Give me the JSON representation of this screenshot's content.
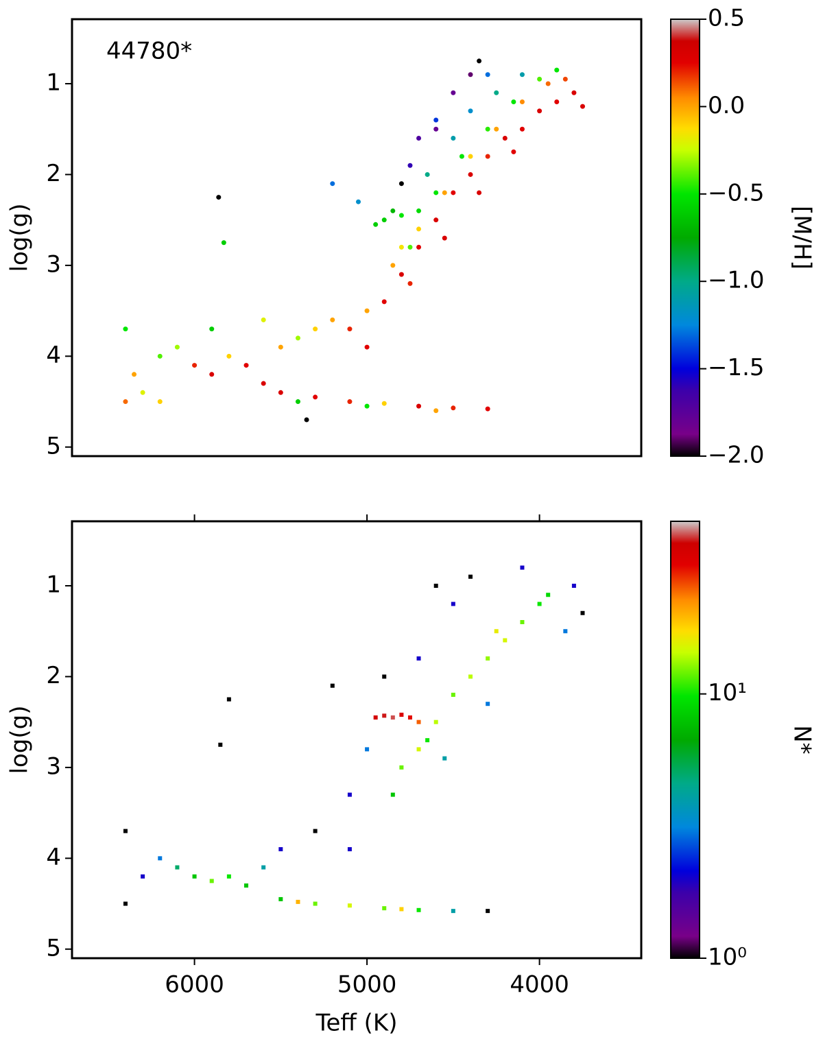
{
  "chart_data": [
    {
      "type": "scatter",
      "annotation": "44780*",
      "ylabel": "log(g)",
      "xlim": [
        6710,
        3410
      ],
      "ylim": [
        0.29,
        5.1
      ],
      "yticks": [
        1,
        2,
        3,
        4,
        5
      ],
      "x": [
        4900,
        4800,
        4700,
        4600,
        4500,
        4400,
        4300,
        4200,
        4100,
        4000,
        3900,
        3800,
        3750,
        4150,
        4350,
        4550,
        4750,
        4850,
        4700,
        4550,
        4400,
        4250,
        4100,
        3950,
        3850,
        4800,
        5000,
        4900,
        4800,
        4700,
        4600,
        4450,
        4300,
        4150,
        4000,
        3900,
        4950,
        4850,
        4750,
        4650,
        4500,
        4400,
        4250,
        4100,
        5050,
        5200,
        4600,
        4300,
        4750,
        4600,
        4500,
        4400,
        4800,
        4700,
        4350,
        6400,
        6350,
        6300,
        6200,
        6100,
        6000,
        5900,
        5800,
        5700,
        5600,
        5500,
        5400,
        5300,
        5200,
        5100,
        5000,
        6400,
        6200,
        5900,
        5600,
        5500,
        5300,
        5100,
        4900,
        4700,
        4500,
        4300,
        5000,
        4600,
        5400,
        5860,
        5830,
        5350
      ],
      "y": [
        3.4,
        3.1,
        2.8,
        2.5,
        2.2,
        2.0,
        1.8,
        1.6,
        1.5,
        1.3,
        1.2,
        1.1,
        1.25,
        1.75,
        2.2,
        2.7,
        3.2,
        3.0,
        2.6,
        2.2,
        1.8,
        1.5,
        1.2,
        1.0,
        0.95,
        2.8,
        3.5,
        2.5,
        2.45,
        2.4,
        2.2,
        1.8,
        1.5,
        1.2,
        0.95,
        0.85,
        2.55,
        2.4,
        2.8,
        2.0,
        1.6,
        1.3,
        1.1,
        0.9,
        2.3,
        2.1,
        1.4,
        0.9,
        1.9,
        1.5,
        1.1,
        0.9,
        2.1,
        1.6,
        0.75,
        3.7,
        4.2,
        4.4,
        4.0,
        3.9,
        4.1,
        4.2,
        4.0,
        4.1,
        4.3,
        3.9,
        3.8,
        3.7,
        3.6,
        3.7,
        3.9,
        4.5,
        4.5,
        3.7,
        3.6,
        4.4,
        4.45,
        4.5,
        4.52,
        4.55,
        4.57,
        4.58,
        4.55,
        4.6,
        4.5,
        2.25,
        2.75,
        4.7
      ],
      "color_values": [
        0.25,
        0.3,
        0.25,
        0.3,
        0.25,
        0.3,
        0.2,
        0.3,
        0.25,
        0.3,
        0.25,
        0.3,
        0.3,
        0.25,
        0.3,
        0.3,
        0.2,
        0.0,
        -0.1,
        0.0,
        -0.1,
        0.0,
        0.05,
        0.1,
        0.15,
        -0.15,
        0.0,
        -0.6,
        -0.5,
        -0.55,
        -0.5,
        -0.5,
        -0.45,
        -0.5,
        -0.4,
        -0.5,
        -0.6,
        -0.7,
        -0.4,
        -1.0,
        -1.1,
        -1.2,
        -1.0,
        -1.1,
        -1.2,
        -1.3,
        -1.4,
        -1.3,
        -1.6,
        -1.8,
        -1.8,
        -1.9,
        -2.0,
        -1.7,
        -2.0,
        -0.5,
        0.0,
        -0.2,
        -0.4,
        -0.3,
        0.2,
        0.3,
        -0.1,
        0.25,
        0.3,
        0.0,
        -0.3,
        -0.1,
        0.0,
        0.2,
        0.25,
        0.1,
        -0.1,
        -0.6,
        -0.2,
        0.3,
        0.25,
        0.2,
        -0.1,
        0.3,
        0.2,
        0.25,
        -0.5,
        0.0,
        -0.6,
        -2.0,
        -0.6,
        -2.0
      ],
      "colorbar": {
        "label": "[M/H]",
        "lim": [
          -2.0,
          0.5
        ],
        "log": false,
        "ticks": [
          0.5,
          {
            "value": 0,
            "label": "0.0"
          },
          {
            "value": -0.5,
            "label": "−0.5"
          },
          {
            "value": -1.0,
            "label": "−1.0"
          },
          {
            "value": -1.5,
            "label": "−1.5"
          },
          {
            "value": -2.0,
            "label": "−2.0"
          }
        ]
      }
    },
    {
      "type": "heatmap",
      "xlabel": "Teff (K)",
      "ylabel": "log(g)",
      "xlim": [
        6710,
        3410
      ],
      "ylim": [
        0.29,
        5.1
      ],
      "xticks": [
        6000,
        5000,
        4000
      ],
      "yticks": [
        1,
        2,
        3,
        4,
        5
      ],
      "x": [
        4950,
        4900,
        4850,
        4800,
        4750,
        4700,
        4800,
        4700,
        4600,
        4500,
        4400,
        4300,
        4200,
        4100,
        4000,
        3950,
        4850,
        4650,
        4250,
        4500,
        4700,
        4900,
        4400,
        4100,
        3800,
        3750,
        4600,
        5000,
        5100,
        3850,
        4300,
        4550,
        5200,
        5800,
        5850,
        6300,
        6200,
        6100,
        6000,
        5900,
        5800,
        5700,
        5600,
        5500,
        5300,
        6400,
        6400,
        5100,
        5500,
        5300,
        5100,
        4900,
        4700,
        4500,
        4300,
        5400,
        4800
      ],
      "y": [
        2.45,
        2.43,
        2.45,
        2.42,
        2.45,
        2.5,
        3.0,
        2.8,
        2.5,
        2.2,
        2.0,
        1.8,
        1.6,
        1.4,
        1.2,
        1.1,
        3.3,
        2.7,
        1.5,
        1.2,
        1.8,
        2.0,
        0.9,
        0.8,
        1.0,
        1.3,
        1.0,
        2.8,
        3.3,
        1.5,
        2.3,
        2.9,
        2.1,
        2.25,
        2.75,
        4.2,
        4.0,
        4.1,
        4.2,
        4.25,
        4.2,
        4.3,
        4.1,
        3.9,
        3.7,
        4.5,
        3.7,
        3.9,
        4.45,
        4.5,
        4.52,
        4.55,
        4.57,
        4.58,
        4.58,
        4.48,
        4.56
      ],
      "values": [
        35,
        38,
        40,
        33,
        30,
        25,
        12,
        15,
        14,
        12,
        14,
        13,
        15,
        12,
        10,
        9,
        8,
        10,
        16,
        2,
        2,
        1,
        1,
        2,
        2,
        1,
        1,
        3,
        2,
        3,
        3,
        4,
        1,
        1,
        1,
        2,
        3,
        5,
        8,
        12,
        10,
        8,
        4,
        2,
        1,
        1,
        1,
        2,
        8,
        12,
        15,
        12,
        10,
        4,
        1,
        20,
        18
      ],
      "colorbar": {
        "label": "N*",
        "lim": [
          1,
          45
        ],
        "log": true,
        "ticks": [
          {
            "value": 1,
            "label": "10⁰"
          },
          {
            "value": 10,
            "label": "10¹"
          }
        ]
      }
    }
  ]
}
